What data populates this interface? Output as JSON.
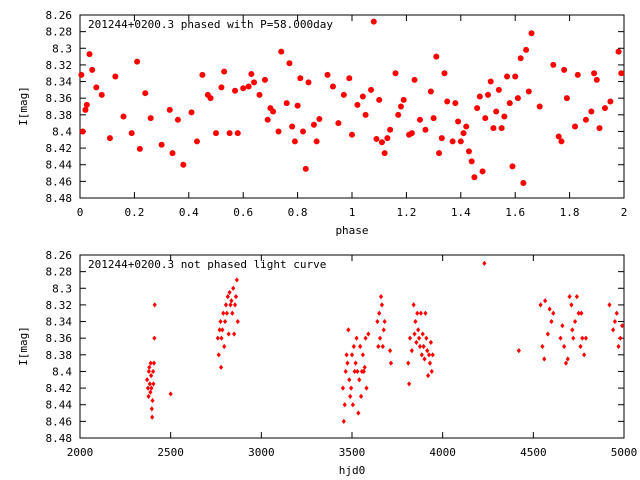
{
  "colors": {
    "series": "#ff0000",
    "axes": "#000000",
    "background": "#ffffff"
  },
  "chart_data": [
    {
      "type": "scatter",
      "title": "201244+0200.3 phased with P=58.000day",
      "xlabel": "phase",
      "ylabel": "I[mag]",
      "xlim": [
        0,
        2
      ],
      "ylim": [
        8.26,
        8.48
      ],
      "y_inverted": true,
      "grid": false,
      "marker": "filled-circle",
      "xticks": [
        0,
        0.2,
        0.4,
        0.6,
        0.8,
        1,
        1.2,
        1.4,
        1.6,
        1.8,
        2
      ],
      "xtick_labels": [
        "0",
        "0.2",
        "0.4",
        "0.6",
        "0.8",
        "1",
        "1.2",
        "1.4",
        "1.6",
        "1.8",
        "2"
      ],
      "yticks": [
        8.26,
        8.28,
        8.3,
        8.32,
        8.34,
        8.36,
        8.38,
        8.4,
        8.42,
        8.44,
        8.46,
        8.48
      ],
      "ytick_labels": [
        "8.26",
        "8.28",
        "8.3",
        "8.32",
        "8.34",
        "8.36",
        "8.38",
        "8.4",
        "8.42",
        "8.44",
        "8.46",
        "8.48"
      ],
      "points": [
        [
          0.005,
          8.332
        ],
        [
          0.01,
          8.4
        ],
        [
          0.02,
          8.374
        ],
        [
          0.025,
          8.368
        ],
        [
          0.035,
          8.307
        ],
        [
          0.045,
          8.326
        ],
        [
          0.06,
          8.347
        ],
        [
          0.08,
          8.356
        ],
        [
          0.11,
          8.408
        ],
        [
          0.13,
          8.334
        ],
        [
          0.16,
          8.382
        ],
        [
          0.19,
          8.402
        ],
        [
          0.21,
          8.316
        ],
        [
          0.22,
          8.421
        ],
        [
          0.24,
          8.354
        ],
        [
          0.26,
          8.384
        ],
        [
          0.3,
          8.416
        ],
        [
          0.33,
          8.374
        ],
        [
          0.34,
          8.426
        ],
        [
          0.36,
          8.386
        ],
        [
          0.38,
          8.44
        ],
        [
          0.41,
          8.377
        ],
        [
          0.43,
          8.412
        ],
        [
          0.45,
          8.332
        ],
        [
          0.47,
          8.356
        ],
        [
          0.48,
          8.36
        ],
        [
          0.5,
          8.402
        ],
        [
          0.52,
          8.347
        ],
        [
          0.53,
          8.328
        ],
        [
          0.55,
          8.402
        ],
        [
          0.57,
          8.351
        ],
        [
          0.58,
          8.402
        ],
        [
          0.6,
          8.348
        ],
        [
          0.62,
          8.346
        ],
        [
          0.63,
          8.331
        ],
        [
          0.64,
          8.341
        ],
        [
          0.66,
          8.356
        ],
        [
          0.68,
          8.338
        ],
        [
          0.69,
          8.386
        ],
        [
          0.7,
          8.372
        ],
        [
          0.71,
          8.376
        ],
        [
          0.73,
          8.4
        ],
        [
          0.74,
          8.304
        ],
        [
          0.76,
          8.366
        ],
        [
          0.77,
          8.318
        ],
        [
          0.78,
          8.394
        ],
        [
          0.79,
          8.412
        ],
        [
          0.8,
          8.369
        ],
        [
          0.81,
          8.336
        ],
        [
          0.82,
          8.4
        ],
        [
          0.83,
          8.445
        ],
        [
          0.84,
          8.341
        ],
        [
          0.86,
          8.392
        ],
        [
          0.87,
          8.412
        ],
        [
          0.88,
          8.385
        ],
        [
          0.91,
          8.332
        ],
        [
          0.93,
          8.346
        ],
        [
          0.95,
          8.39
        ],
        [
          0.97,
          8.356
        ],
        [
          0.99,
          8.336
        ],
        [
          1.0,
          8.404
        ],
        [
          1.02,
          8.368
        ],
        [
          1.04,
          8.358
        ],
        [
          1.05,
          8.38
        ],
        [
          1.07,
          8.35
        ],
        [
          1.08,
          8.268
        ],
        [
          1.09,
          8.409
        ],
        [
          1.1,
          8.362
        ],
        [
          1.11,
          8.413
        ],
        [
          1.12,
          8.426
        ],
        [
          1.13,
          8.408
        ],
        [
          1.14,
          8.398
        ],
        [
          1.16,
          8.33
        ],
        [
          1.17,
          8.38
        ],
        [
          1.18,
          8.37
        ],
        [
          1.19,
          8.362
        ],
        [
          1.21,
          8.404
        ],
        [
          1.22,
          8.402
        ],
        [
          1.23,
          8.338
        ],
        [
          1.25,
          8.386
        ],
        [
          1.27,
          8.398
        ],
        [
          1.29,
          8.352
        ],
        [
          1.3,
          8.384
        ],
        [
          1.31,
          8.31
        ],
        [
          1.32,
          8.426
        ],
        [
          1.33,
          8.408
        ],
        [
          1.34,
          8.33
        ],
        [
          1.35,
          8.364
        ],
        [
          1.37,
          8.412
        ],
        [
          1.38,
          8.366
        ],
        [
          1.39,
          8.388
        ],
        [
          1.4,
          8.412
        ],
        [
          1.41,
          8.402
        ],
        [
          1.42,
          8.394
        ],
        [
          1.43,
          8.424
        ],
        [
          1.44,
          8.436
        ],
        [
          1.45,
          8.455
        ],
        [
          1.46,
          8.372
        ],
        [
          1.47,
          8.358
        ],
        [
          1.48,
          8.448
        ],
        [
          1.49,
          8.384
        ],
        [
          1.5,
          8.356
        ],
        [
          1.51,
          8.34
        ],
        [
          1.52,
          8.396
        ],
        [
          1.53,
          8.376
        ],
        [
          1.54,
          8.35
        ],
        [
          1.55,
          8.396
        ],
        [
          1.56,
          8.382
        ],
        [
          1.57,
          8.334
        ],
        [
          1.58,
          8.366
        ],
        [
          1.59,
          8.442
        ],
        [
          1.6,
          8.334
        ],
        [
          1.61,
          8.36
        ],
        [
          1.62,
          8.312
        ],
        [
          1.63,
          8.462
        ],
        [
          1.64,
          8.302
        ],
        [
          1.65,
          8.352
        ],
        [
          1.66,
          8.282
        ],
        [
          1.69,
          8.37
        ],
        [
          1.74,
          8.32
        ],
        [
          1.76,
          8.406
        ],
        [
          1.77,
          8.412
        ],
        [
          1.78,
          8.326
        ],
        [
          1.79,
          8.36
        ],
        [
          1.82,
          8.394
        ],
        [
          1.83,
          8.332
        ],
        [
          1.86,
          8.386
        ],
        [
          1.88,
          8.376
        ],
        [
          1.89,
          8.33
        ],
        [
          1.9,
          8.338
        ],
        [
          1.91,
          8.396
        ],
        [
          1.93,
          8.372
        ],
        [
          1.95,
          8.364
        ],
        [
          1.98,
          8.304
        ],
        [
          1.99,
          8.33
        ]
      ]
    },
    {
      "type": "scatter",
      "title": "201244+0200.3 not phased light curve",
      "xlabel": "hjd0",
      "ylabel": "I[mag]",
      "xlim": [
        2000,
        5000
      ],
      "ylim": [
        8.26,
        8.48
      ],
      "y_inverted": true,
      "grid": false,
      "marker": "filled-diamond",
      "xticks": [
        2000,
        2500,
        3000,
        3500,
        4000,
        4500,
        5000
      ],
      "xtick_labels": [
        "2000",
        "2500",
        "3000",
        "3500",
        "4000",
        "4500",
        "5000"
      ],
      "yticks": [
        8.26,
        8.28,
        8.3,
        8.32,
        8.34,
        8.36,
        8.38,
        8.4,
        8.42,
        8.44,
        8.46,
        8.48
      ],
      "ytick_labels": [
        "8.26",
        "8.28",
        "8.3",
        "8.32",
        "8.34",
        "8.36",
        "8.38",
        "8.4",
        "8.42",
        "8.44",
        "8.46",
        "8.48"
      ],
      "points": [
        [
          2370,
          8.41
        ],
        [
          2375,
          8.42
        ],
        [
          2378,
          8.43
        ],
        [
          2380,
          8.4
        ],
        [
          2382,
          8.395
        ],
        [
          2385,
          8.415
        ],
        [
          2388,
          8.425
        ],
        [
          2390,
          8.39
        ],
        [
          2392,
          8.405
        ],
        [
          2394,
          8.42
        ],
        [
          2396,
          8.445
        ],
        [
          2398,
          8.455
        ],
        [
          2400,
          8.435
        ],
        [
          2403,
          8.4
        ],
        [
          2405,
          8.415
        ],
        [
          2408,
          8.39
        ],
        [
          2410,
          8.36
        ],
        [
          2412,
          8.32
        ],
        [
          2500,
          8.427
        ],
        [
          2760,
          8.36
        ],
        [
          2765,
          8.38
        ],
        [
          2770,
          8.35
        ],
        [
          2775,
          8.34
        ],
        [
          2778,
          8.395
        ],
        [
          2780,
          8.36
        ],
        [
          2785,
          8.35
        ],
        [
          2790,
          8.33
        ],
        [
          2795,
          8.37
        ],
        [
          2800,
          8.34
        ],
        [
          2805,
          8.32
        ],
        [
          2810,
          8.33
        ],
        [
          2815,
          8.31
        ],
        [
          2820,
          8.355
        ],
        [
          2825,
          8.305
        ],
        [
          2830,
          8.32
        ],
        [
          2835,
          8.315
        ],
        [
          2840,
          8.33
        ],
        [
          2845,
          8.3
        ],
        [
          2850,
          8.355
        ],
        [
          2855,
          8.32
        ],
        [
          2860,
          8.31
        ],
        [
          2865,
          8.29
        ],
        [
          2870,
          8.34
        ],
        [
          3450,
          8.42
        ],
        [
          3455,
          8.46
        ],
        [
          3460,
          8.44
        ],
        [
          3465,
          8.4
        ],
        [
          3470,
          8.38
        ],
        [
          3475,
          8.39
        ],
        [
          3480,
          8.35
        ],
        [
          3485,
          8.41
        ],
        [
          3490,
          8.43
        ],
        [
          3495,
          8.42
        ],
        [
          3500,
          8.38
        ],
        [
          3505,
          8.44
        ],
        [
          3510,
          8.37
        ],
        [
          3515,
          8.4
        ],
        [
          3520,
          8.39
        ],
        [
          3525,
          8.36
        ],
        [
          3530,
          8.4
        ],
        [
          3535,
          8.45
        ],
        [
          3540,
          8.41
        ],
        [
          3545,
          8.37
        ],
        [
          3550,
          8.43
        ],
        [
          3555,
          8.4
        ],
        [
          3560,
          8.38
        ],
        [
          3565,
          8.4
        ],
        [
          3570,
          8.395
        ],
        [
          3575,
          8.36
        ],
        [
          3580,
          8.42
        ],
        [
          3590,
          8.355
        ],
        [
          3640,
          8.34
        ],
        [
          3645,
          8.37
        ],
        [
          3650,
          8.33
        ],
        [
          3655,
          8.36
        ],
        [
          3660,
          8.31
        ],
        [
          3665,
          8.32
        ],
        [
          3670,
          8.37
        ],
        [
          3675,
          8.35
        ],
        [
          3680,
          8.34
        ],
        [
          3710,
          8.375
        ],
        [
          3715,
          8.39
        ],
        [
          3810,
          8.39
        ],
        [
          3815,
          8.415
        ],
        [
          3820,
          8.36
        ],
        [
          3830,
          8.375
        ],
        [
          3840,
          8.32
        ],
        [
          3845,
          8.355
        ],
        [
          3850,
          8.34
        ],
        [
          3855,
          8.365
        ],
        [
          3860,
          8.33
        ],
        [
          3865,
          8.35
        ],
        [
          3870,
          8.36
        ],
        [
          3875,
          8.37
        ],
        [
          3880,
          8.33
        ],
        [
          3885,
          8.38
        ],
        [
          3890,
          8.355
        ],
        [
          3895,
          8.37
        ],
        [
          3900,
          8.385
        ],
        [
          3905,
          8.33
        ],
        [
          3910,
          8.36
        ],
        [
          3915,
          8.375
        ],
        [
          3920,
          8.405
        ],
        [
          3925,
          8.38
        ],
        [
          3930,
          8.39
        ],
        [
          3935,
          8.365
        ],
        [
          3940,
          8.4
        ],
        [
          3945,
          8.38
        ],
        [
          4230,
          8.27
        ],
        [
          4420,
          8.375
        ],
        [
          4540,
          8.32
        ],
        [
          4550,
          8.37
        ],
        [
          4560,
          8.385
        ],
        [
          4565,
          8.315
        ],
        [
          4580,
          8.355
        ],
        [
          4590,
          8.325
        ],
        [
          4600,
          8.34
        ],
        [
          4610,
          8.33
        ],
        [
          4650,
          8.36
        ],
        [
          4660,
          8.345
        ],
        [
          4670,
          8.37
        ],
        [
          4680,
          8.39
        ],
        [
          4690,
          8.385
        ],
        [
          4700,
          8.31
        ],
        [
          4710,
          8.32
        ],
        [
          4715,
          8.35
        ],
        [
          4720,
          8.36
        ],
        [
          4730,
          8.34
        ],
        [
          4740,
          8.31
        ],
        [
          4750,
          8.33
        ],
        [
          4760,
          8.37
        ],
        [
          4765,
          8.33
        ],
        [
          4770,
          8.36
        ],
        [
          4780,
          8.38
        ],
        [
          4790,
          8.36
        ],
        [
          4920,
          8.32
        ],
        [
          4940,
          8.35
        ],
        [
          4950,
          8.34
        ],
        [
          4960,
          8.33
        ],
        [
          4970,
          8.37
        ],
        [
          4980,
          8.36
        ],
        [
          4990,
          8.345
        ]
      ]
    }
  ]
}
